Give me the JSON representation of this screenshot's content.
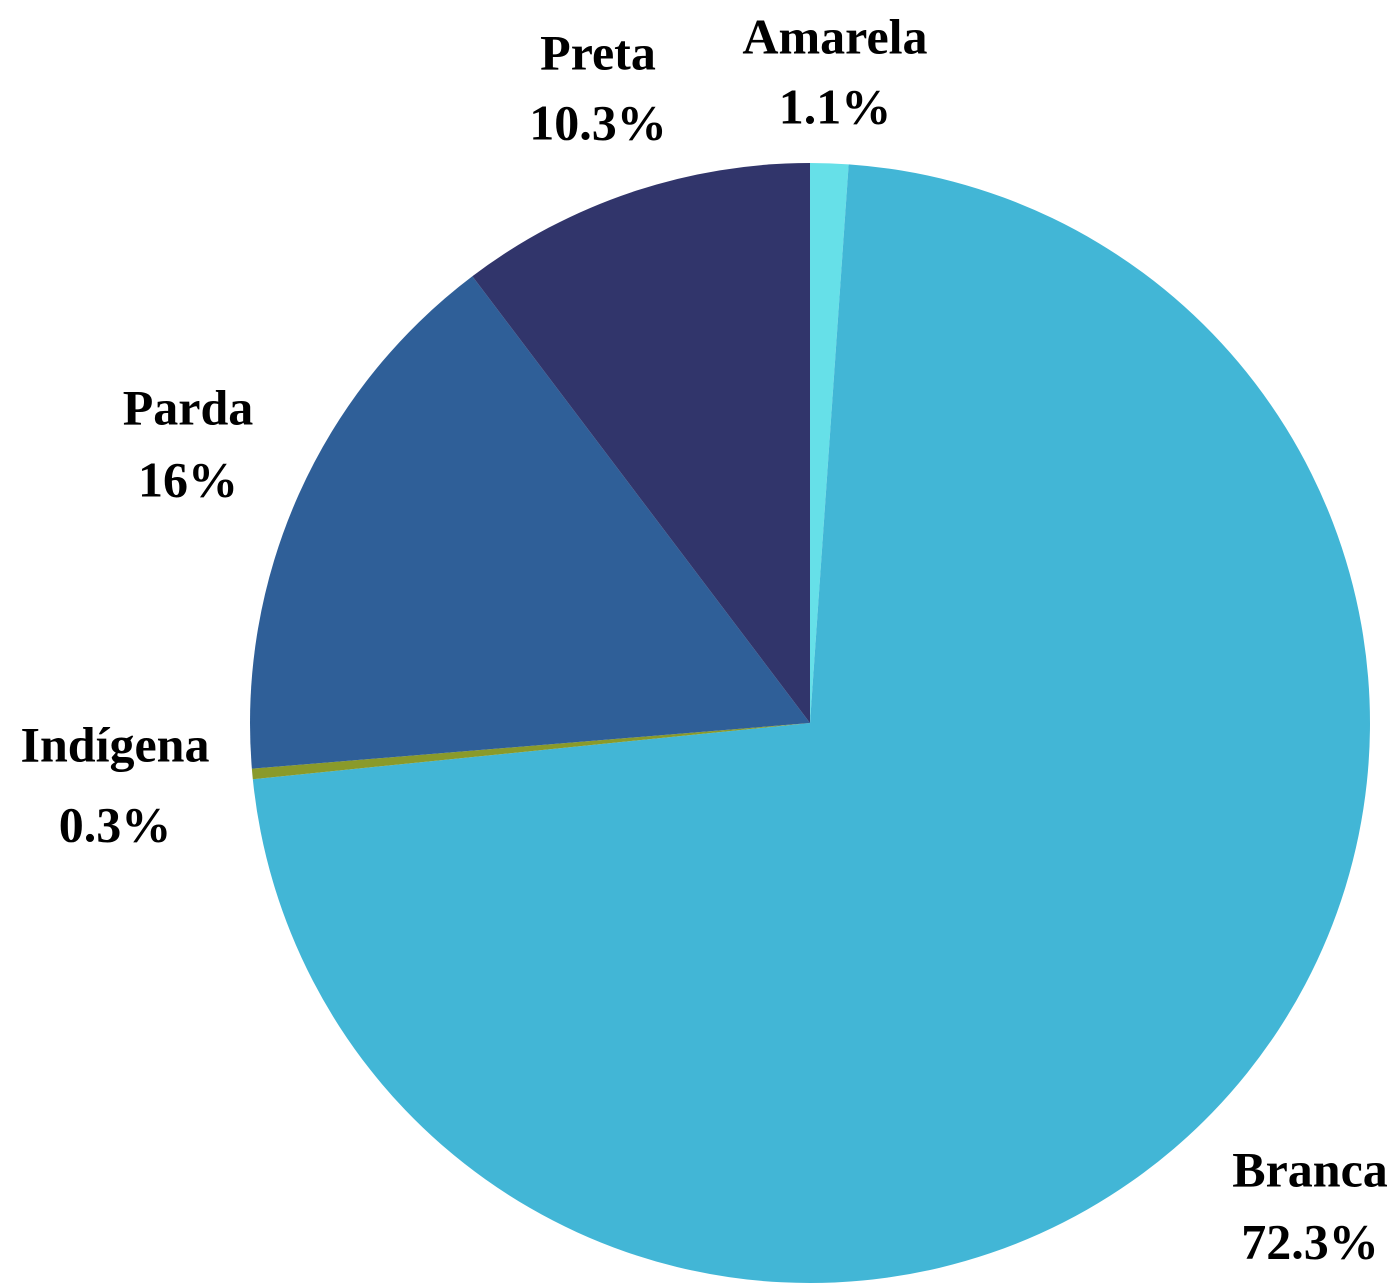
{
  "chart_data": {
    "type": "pie",
    "categories": [
      "Amarela",
      "Branca",
      "Indígena",
      "Parda",
      "Preta"
    ],
    "values": [
      1.1,
      72.3,
      0.3,
      16,
      10.3
    ],
    "value_labels": [
      "1.1%",
      "72.3%",
      "0.3%",
      "16%",
      "10.3%"
    ],
    "colors": [
      "#66e0e8",
      "#42b6d6",
      "#8a9a2a",
      "#2f5f98",
      "#31356b"
    ]
  }
}
